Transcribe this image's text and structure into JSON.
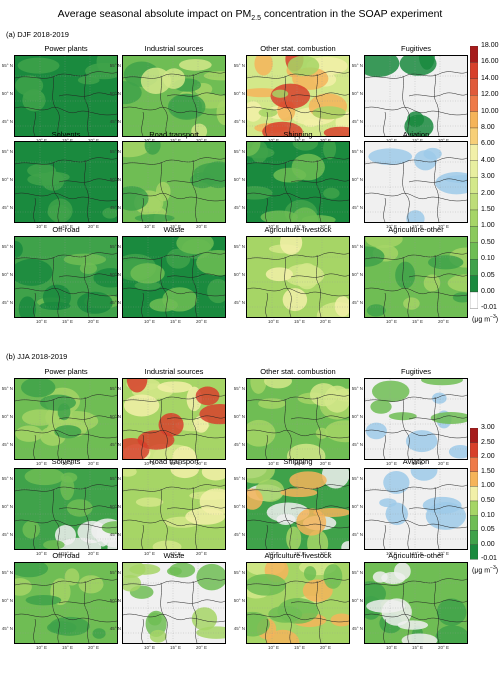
{
  "title": {
    "prefix": "Average seasonal absolute impact on PM",
    "sub": "2.5",
    "suffix": " concentration in the SOAP experiment"
  },
  "sections": [
    {
      "label": "(a) DJF 2018-2019",
      "panels": [
        "Power plants",
        "Industrial sources",
        "Other stat. combustion",
        "Fugitives",
        "Solvents",
        "Road transport",
        "Shipping",
        "Aviation",
        "Off-road",
        "Waste",
        "Agriculture-livestock",
        "Agriculture-other"
      ],
      "colorbar": [
        "18.00",
        "16.00",
        "14.00",
        "12.00",
        "10.00",
        "8.00",
        "6.00",
        "4.00",
        "3.00",
        "2.00",
        "1.50",
        "1.00",
        "0.50",
        "0.10",
        "0.05",
        "0.00",
        "-0.01"
      ]
    },
    {
      "label": "(b) JJA 2018-2019",
      "panels": [
        "Power plants",
        "Industrial sources",
        "Other stat. combustion",
        "Fugitives",
        "Solvents",
        "Road transport",
        "Shipping",
        "Aviation",
        "Off-road",
        "Waste",
        "Agriculture-livestock",
        "Agriculture-other"
      ],
      "colorbar": [
        "3.00",
        "2.50",
        "2.00",
        "1.50",
        "1.00",
        "0.50",
        "0.10",
        "0.05",
        "0.00",
        "-0.01"
      ]
    }
  ],
  "lat_labels": [
    "55° N",
    "50° N",
    "45° N"
  ],
  "lon_labels": [
    "10° E",
    "15° E",
    "20° E"
  ],
  "unit": {
    "prefix": "(μg m",
    "sup": "−3",
    "suffix": ")"
  },
  "colors": {
    "dark_green": "#1a8a3e",
    "green": "#3fa24a",
    "mid_green": "#6fbd54",
    "light_green": "#a6d566",
    "yellow_green": "#d3e88a",
    "pale_yellow": "#f2f0a8",
    "orange": "#f5b45a",
    "red": "#d7402b",
    "dark_red": "#a61b1b",
    "light_blue": "#9ecae9",
    "grey": "#f0f0f0"
  },
  "chart_data": [
    {
      "type": "heatmap",
      "title": "(a) DJF 2018-2019",
      "panels": [
        {
          "name": "Power plants",
          "dominant_class": "0.05–0.10"
        },
        {
          "name": "Industrial sources",
          "dominant_class": "0.10–0.50"
        },
        {
          "name": "Other stat. combustion",
          "dominant_class": "1.00–3.00",
          "max_class": "≥16.00"
        },
        {
          "name": "Fugitives",
          "dominant_class": "0.00",
          "max_class": "0.05–0.10"
        },
        {
          "name": "Solvents",
          "dominant_class": "0.05–0.10"
        },
        {
          "name": "Road transport",
          "dominant_class": "0.10–0.50"
        },
        {
          "name": "Shipping",
          "dominant_class": "0.05–0.10"
        },
        {
          "name": "Aviation",
          "dominant_class": "0.00",
          "min_class": "-0.01"
        },
        {
          "name": "Off-road",
          "dominant_class": "0.10–0.50"
        },
        {
          "name": "Waste",
          "dominant_class": "0.05–0.10"
        },
        {
          "name": "Agriculture-livestock",
          "dominant_class": "0.50–1.50"
        },
        {
          "name": "Agriculture-other",
          "dominant_class": "0.10–0.50"
        }
      ],
      "colorbar_levels": [
        -0.01,
        0,
        0.05,
        0.1,
        0.5,
        1,
        1.5,
        2,
        3,
        4,
        6,
        8,
        10,
        12,
        14,
        16,
        18
      ],
      "unit": "μg m−3"
    },
    {
      "type": "heatmap",
      "title": "(b) JJA 2018-2019",
      "panels": [
        {
          "name": "Power plants",
          "dominant_class": "0.10–0.50"
        },
        {
          "name": "Industrial sources",
          "dominant_class": "0.10–0.50",
          "max_class": "2.50–3.00"
        },
        {
          "name": "Other stat. combustion",
          "dominant_class": "0.10–0.50"
        },
        {
          "name": "Fugitives",
          "dominant_class": "0.00"
        },
        {
          "name": "Solvents",
          "dominant_class": "0.05–0.10"
        },
        {
          "name": "Road transport",
          "dominant_class": "0.10–1.00"
        },
        {
          "name": "Shipping",
          "dominant_class": "0.05–0.50"
        },
        {
          "name": "Aviation",
          "dominant_class": "0.00",
          "min_class": "-0.01"
        },
        {
          "name": "Off-road",
          "dominant_class": "0.10–0.50"
        },
        {
          "name": "Waste",
          "dominant_class": "0.00–0.10"
        },
        {
          "name": "Agriculture-livestock",
          "dominant_class": "0.10–0.50"
        },
        {
          "name": "Agriculture-other",
          "dominant_class": "0.05–0.10"
        }
      ],
      "colorbar_levels": [
        -0.01,
        0,
        0.05,
        0.1,
        0.5,
        1,
        1.5,
        2,
        2.5,
        3
      ],
      "unit": "μg m−3"
    }
  ]
}
